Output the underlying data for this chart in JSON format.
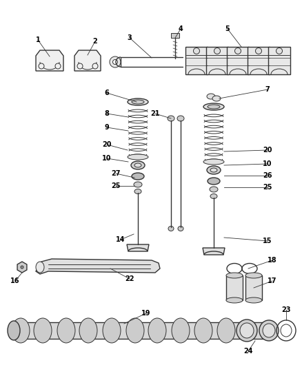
{
  "bg_color": "#ffffff",
  "line_color": "#333333",
  "fig_width": 4.38,
  "fig_height": 5.33,
  "dpi": 100
}
